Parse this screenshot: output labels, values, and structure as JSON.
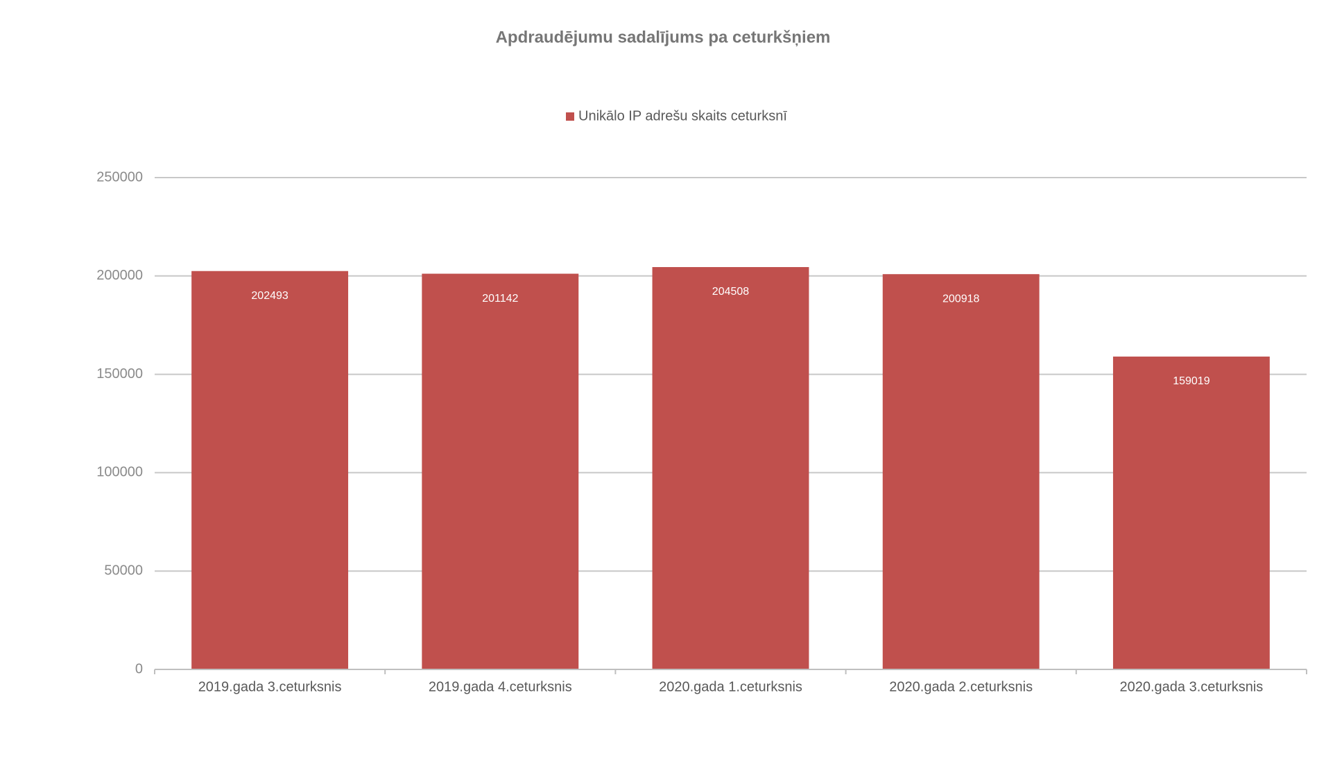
{
  "chart_data": {
    "type": "bar",
    "title": "Apdraudējumu sadalījums pa ceturkšņiem",
    "categories": [
      "2019.gada 3.ceturksnis",
      "2019.gada 4.ceturksnis",
      "2020.gada 1.ceturksnis",
      "2020.gada 2.ceturksnis",
      "2020.gada 3.ceturksnis"
    ],
    "series": [
      {
        "name": "Unikālo IP adrešu skaits ceturksnī",
        "color": "#c0504d",
        "values": [
          202493,
          201142,
          204508,
          200918,
          159019
        ]
      }
    ],
    "ylim": [
      0,
      250000
    ],
    "yticks": [
      0,
      50000,
      100000,
      150000,
      200000,
      250000
    ],
    "grid": true,
    "legend": "top",
    "data_labels": true
  }
}
